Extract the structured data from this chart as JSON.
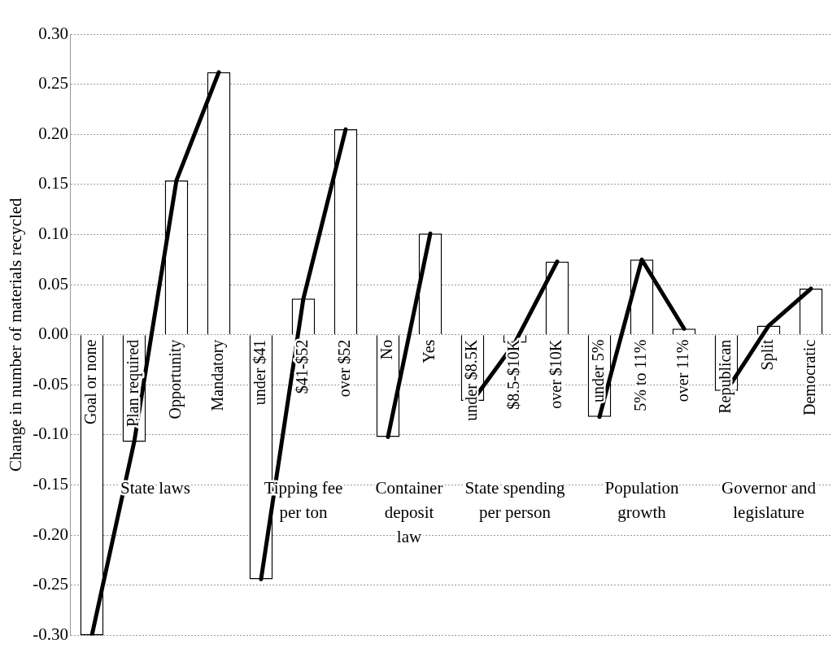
{
  "chart_data": {
    "type": "bar",
    "ylabel": "Change in number of materials recycled",
    "categories": [
      "Goal or none",
      "Plan required",
      "Opportunity",
      "Mandatory",
      "under $41",
      "$41-$52",
      "over $52",
      "No",
      "Yes",
      "under $8.5K",
      "$8.5-$10K",
      "over $10K",
      "under 5%",
      "5% to 11%",
      "over 11%",
      "Republican",
      "Split",
      "Democratic"
    ],
    "series": [
      {
        "color": "#ffffff",
        "values": [
          -0.3,
          -0.107,
          0.154,
          0.262,
          -0.244,
          0.036,
          0.205,
          -0.102,
          0.101,
          -0.066,
          -0.008,
          0.073,
          -0.082,
          0.075,
          0.006,
          -0.056,
          0.009,
          0.046
        ]
      },
      {
        "type": "line",
        "color": "#000000",
        "values": [
          -0.3,
          -0.107,
          0.154,
          0.262,
          null,
          null,
          null,
          null,
          null,
          null,
          null,
          null,
          null,
          null,
          null,
          null,
          null,
          null
        ]
      },
      {
        "type": "line",
        "color": "#000000",
        "values": [
          null,
          null,
          null,
          null,
          -0.244,
          0.036,
          0.205,
          null,
          null,
          null,
          null,
          null,
          null,
          null,
          null,
          null,
          null,
          null
        ]
      },
      {
        "type": "line",
        "color": "#000000",
        "values": [
          null,
          null,
          null,
          null,
          null,
          null,
          null,
          -0.102,
          0.101,
          null,
          null,
          null,
          null,
          null,
          null,
          null,
          null,
          null
        ]
      },
      {
        "type": "line",
        "color": "#000000",
        "values": [
          null,
          null,
          null,
          null,
          null,
          null,
          null,
          null,
          null,
          -0.066,
          -0.008,
          0.073,
          null,
          null,
          null,
          null,
          null,
          null
        ]
      },
      {
        "type": "line",
        "color": "#000000",
        "values": [
          null,
          null,
          null,
          null,
          null,
          null,
          null,
          null,
          null,
          null,
          null,
          null,
          -0.082,
          0.075,
          0.006,
          null,
          null,
          null
        ]
      },
      {
        "type": "line",
        "color": "#000000",
        "values": [
          null,
          null,
          null,
          null,
          null,
          null,
          null,
          null,
          null,
          null,
          null,
          null,
          null,
          null,
          null,
          -0.056,
          0.009,
          0.046
        ]
      }
    ],
    "annotations": [
      "State laws",
      "Tipping fee per ton",
      "Container deposit law",
      "State spending per person",
      "Population growth",
      "Governor and legislature"
    ],
    "ylim": [
      -0.3,
      0.3
    ],
    "yticks": [
      {
        "value": -0.3,
        "label": "-0.30"
      },
      {
        "value": -0.25,
        "label": "-0.25"
      },
      {
        "value": -0.2,
        "label": "-0.20"
      },
      {
        "value": -0.15,
        "label": "-0.15"
      },
      {
        "value": -0.1,
        "label": "-0.10"
      },
      {
        "value": -0.05,
        "label": "-0.05"
      },
      {
        "value": 0,
        "label": "0.00"
      },
      {
        "value": 0.05,
        "label": "0.05"
      },
      {
        "value": 0.1,
        "label": "0.10"
      },
      {
        "value": 0.15,
        "label": "0.15"
      },
      {
        "value": 0.2,
        "label": "0.20"
      },
      {
        "value": 0.25,
        "label": "0.25"
      },
      {
        "value": 0.3,
        "label": "0.30"
      }
    ],
    "grid": "y",
    "legend": false,
    "marker": "none",
    "line_style": "solid"
  }
}
